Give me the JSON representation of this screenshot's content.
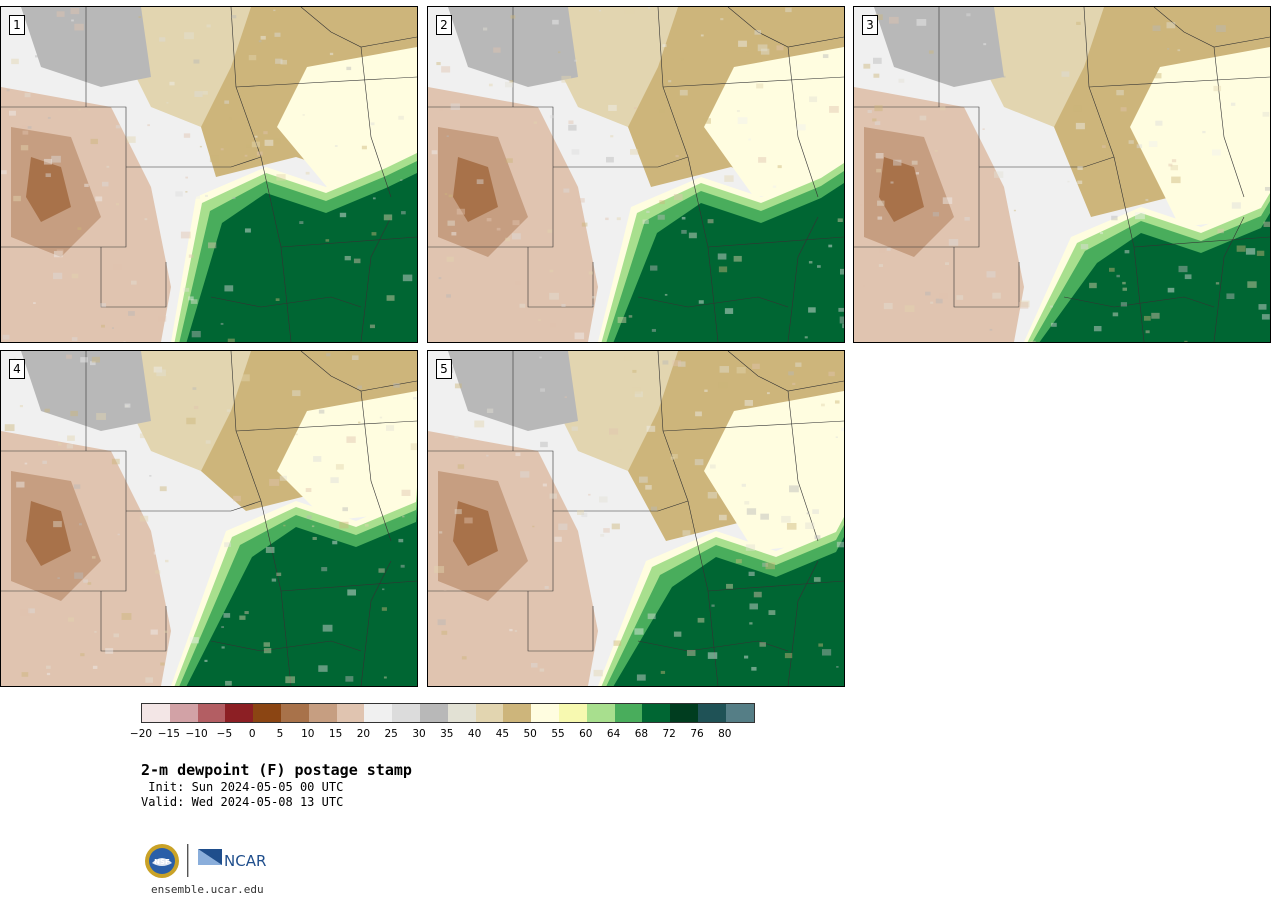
{
  "panels": [
    {
      "label": "1"
    },
    {
      "label": "2"
    },
    {
      "label": "3"
    },
    {
      "label": "4"
    },
    {
      "label": "5"
    }
  ],
  "colorbar": {
    "colors": [
      "#f3e6e6",
      "#d2a2a6",
      "#b35e63",
      "#8c1f24",
      "#8b4513",
      "#a8724a",
      "#c69e81",
      "#e0c4b0",
      "#f0f0f0",
      "#dcdcdc",
      "#b8b8b8",
      "#e2e1d4",
      "#e2d5b0",
      "#cdb57b",
      "#fffde0",
      "#f7f9b0",
      "#a8df8e",
      "#49ad5c",
      "#006633",
      "#003d1f",
      "#1f5256",
      "#557e86"
    ],
    "ticks": [
      "−20",
      "−15",
      "−10",
      "−5",
      "0",
      "5",
      "10",
      "15",
      "20",
      "25",
      "30",
      "35",
      "40",
      "45",
      "50",
      "55",
      "60",
      "64",
      "68",
      "72",
      "76",
      "80"
    ]
  },
  "title": "2-m dewpoint (F) postage stamp",
  "init": " Init: Sun 2024-05-05 00 UTC",
  "valid": "Valid: Wed 2024-05-08 13 UTC",
  "logos": {
    "nsf": "NSF",
    "ncar": "NCAR"
  },
  "site": "ensemble.ucar.edu"
}
